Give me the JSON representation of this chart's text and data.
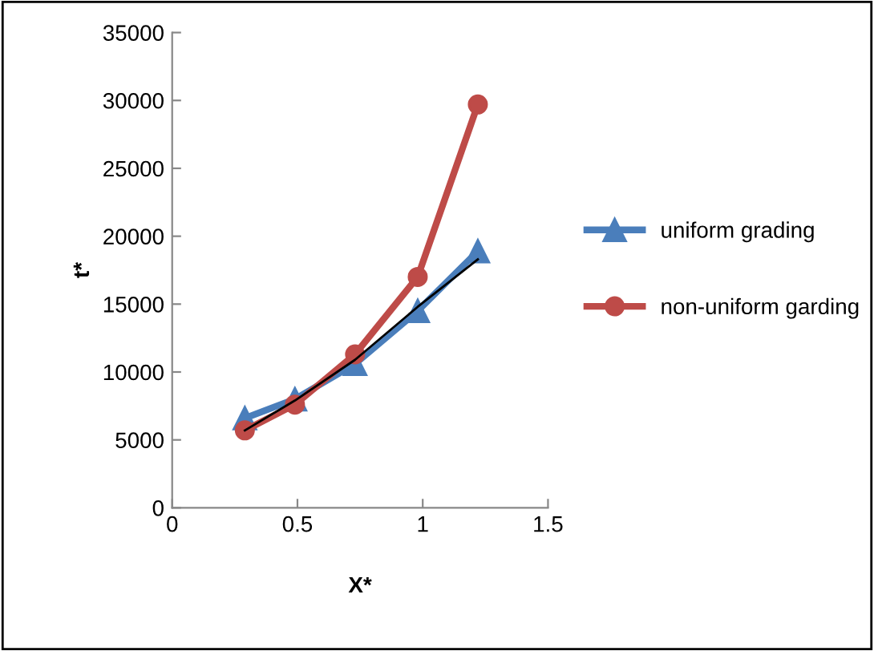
{
  "chart_data": {
    "type": "line",
    "xlabel": "X*",
    "ylabel": "t*",
    "x": [
      0.29,
      0.49,
      0.73,
      0.98,
      1.22
    ],
    "series": [
      {
        "name": "uniform grading",
        "color": "#4a7ebb",
        "marker": "triangle",
        "values": [
          6600,
          8000,
          10600,
          14500,
          18900
        ]
      },
      {
        "name": "non-uniform garding",
        "color": "#be4b48",
        "marker": "circle",
        "values": [
          5700,
          7600,
          11300,
          17000,
          29700
        ]
      },
      {
        "color": "#000000",
        "marker": "none",
        "values": [
          5700,
          7900,
          10900,
          14800,
          18300
        ]
      }
    ],
    "xlim": [
      0,
      1.5
    ],
    "xticks": [
      0,
      0.5,
      1,
      1.5
    ],
    "ylim": [
      0,
      35000
    ],
    "yticks": [
      0,
      5000,
      10000,
      15000,
      20000,
      25000,
      30000,
      35000
    ],
    "grid": false,
    "legend": "right"
  }
}
